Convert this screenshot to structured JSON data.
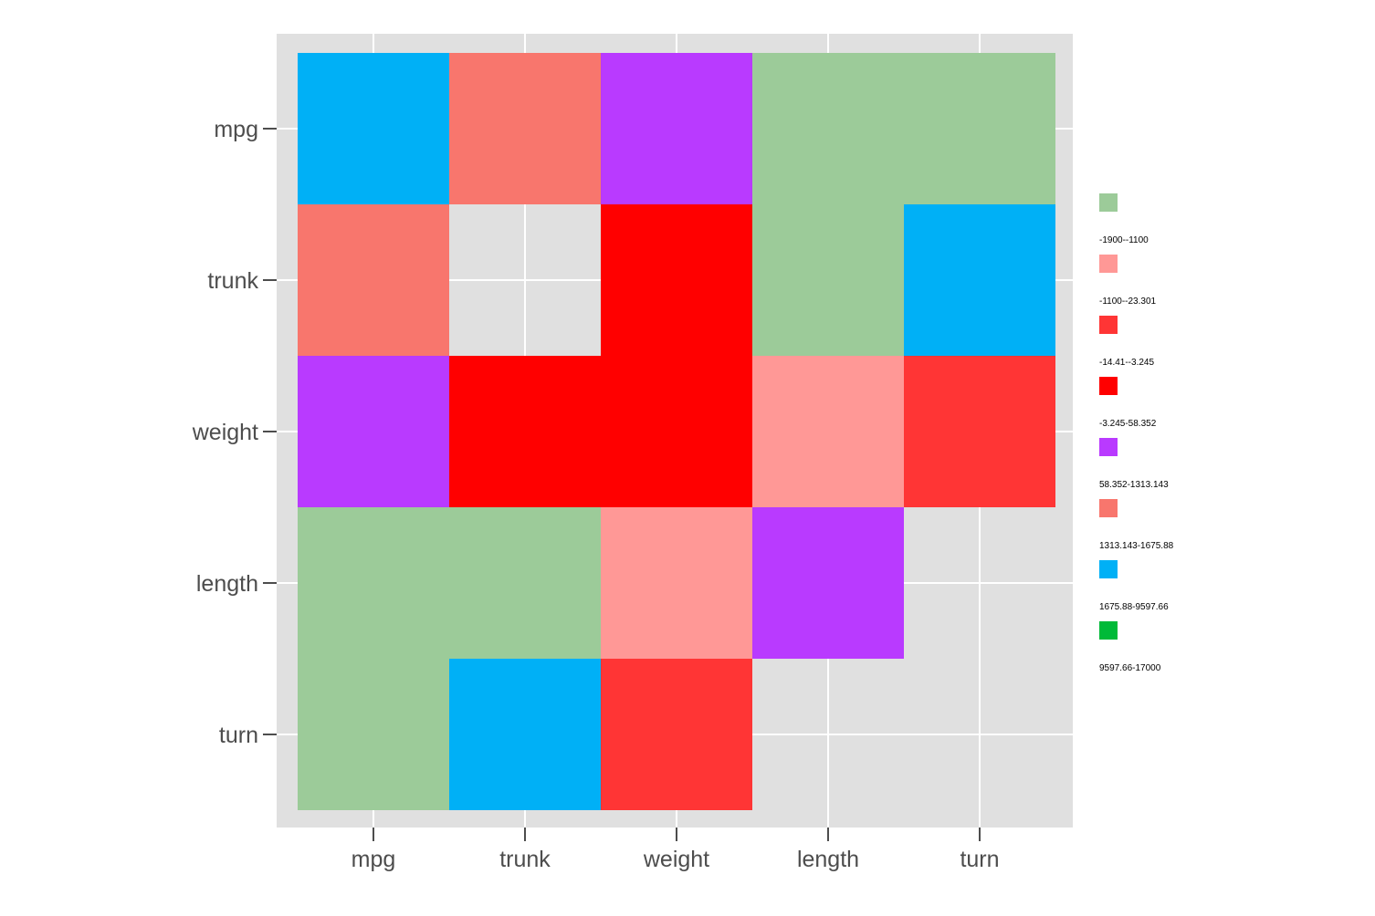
{
  "chart_data": {
    "type": "heatmap",
    "title": "",
    "xlabel": "",
    "ylabel": "",
    "x_categories": [
      "mpg",
      "trunk",
      "weight",
      "length",
      "turn"
    ],
    "y_categories": [
      "mpg",
      "trunk",
      "weight",
      "length",
      "turn"
    ],
    "cells": [
      [
        "1313.143-1675.88",
        "58.352-1313.143",
        "-3.245-58.352",
        null,
        null
      ],
      [
        "58.352-1313.143",
        "9597.66-17000",
        "-14.41--3.245",
        null,
        "1313.143-1675.88"
      ],
      [
        "-3.245-58.352",
        "-14.41--3.245",
        "-14.41--3.245",
        "-1900--1100",
        "-1100--23.301"
      ],
      [
        null,
        null,
        "-1900--1100",
        "-3.245-58.352",
        "empty"
      ],
      [
        null,
        "1313.143-1675.88",
        "-1100--23.301",
        "empty",
        "9597.66-17000"
      ]
    ],
    "legend": [
      {
        "label": "",
        "color": "#9ccb99"
      },
      {
        "label": "-1900--1100",
        "color": "#ff9896"
      },
      {
        "label": "-1100--23.301",
        "color": "#ff3535"
      },
      {
        "label": "-14.41--3.245",
        "color": "#ff0000"
      },
      {
        "label": "-3.245-58.352",
        "color": "#b93aff"
      },
      {
        "label": "58.352-1313.143",
        "color": "#f8766d"
      },
      {
        "label": "1313.143-1675.88",
        "color": "#00b0f6"
      },
      {
        "label": "1675.88-9597.66",
        "color": "#00ba38"
      },
      {
        "label": "9597.66-17000",
        "color": ""
      }
    ],
    "legend_position": "right",
    "panel_background": "#e0e0e0",
    "grid": true
  }
}
